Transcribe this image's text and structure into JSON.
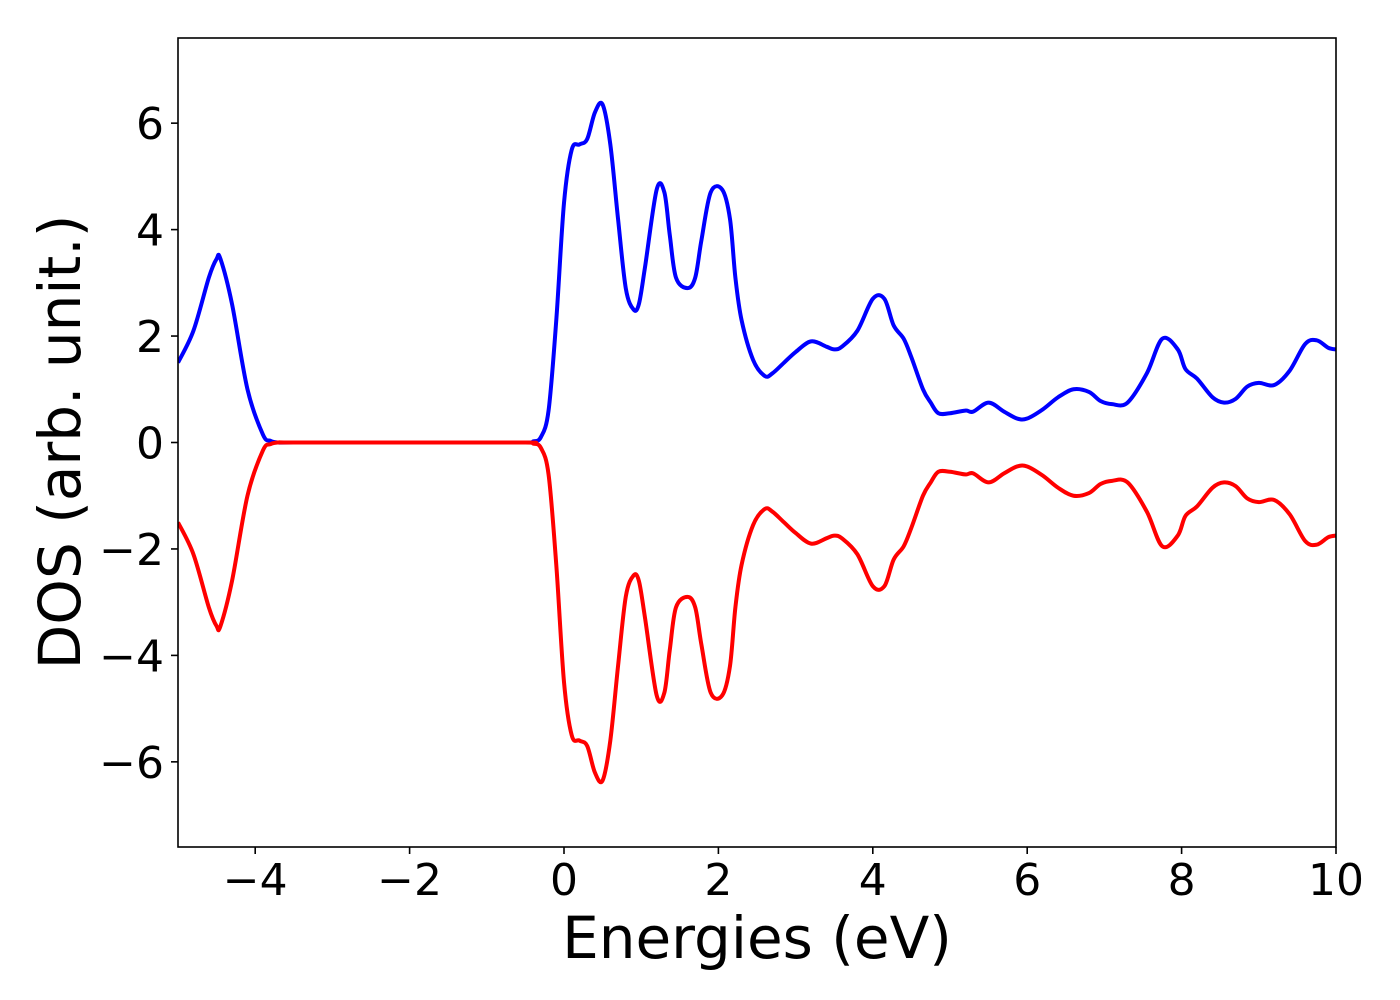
{
  "chart_data": {
    "type": "line",
    "title": "",
    "xlabel": "Energies (eV)",
    "ylabel": "DOS (arb. unit.)",
    "xlim": [
      -5,
      10
    ],
    "ylim": [
      -7.6,
      7.6
    ],
    "grid": false,
    "legend": "none",
    "xticks": [
      -4,
      -2,
      0,
      2,
      4,
      6,
      8,
      10
    ],
    "yticks": [
      -6,
      -4,
      -2,
      0,
      2,
      4,
      6
    ],
    "xtick_labels": [
      "−4",
      "−2",
      "0",
      "2",
      "4",
      "6",
      "8",
      "10"
    ],
    "ytick_labels": [
      "−6",
      "−4",
      "−2",
      "0",
      "2",
      "4",
      "6"
    ],
    "x": [
      -5.0,
      -4.8,
      -4.6,
      -4.5,
      -4.45,
      -4.3,
      -4.1,
      -3.9,
      -3.8,
      -3.7,
      -3.5,
      -2.0,
      -0.5,
      -0.4,
      -0.3,
      -0.2,
      -0.1,
      0.0,
      0.1,
      0.2,
      0.3,
      0.4,
      0.5,
      0.6,
      0.7,
      0.8,
      0.9,
      0.97,
      1.05,
      1.2,
      1.3,
      1.37,
      1.45,
      1.6,
      1.7,
      1.78,
      1.9,
      2.05,
      2.15,
      2.22,
      2.3,
      2.45,
      2.6,
      2.7,
      2.85,
      3.0,
      3.2,
      3.4,
      3.5,
      3.6,
      3.8,
      4.0,
      4.15,
      4.27,
      4.4,
      4.5,
      4.65,
      4.75,
      4.85,
      5.0,
      5.2,
      5.3,
      5.5,
      5.7,
      5.87,
      6.0,
      6.2,
      6.4,
      6.6,
      6.8,
      6.95,
      7.1,
      7.3,
      7.55,
      7.75,
      7.95,
      8.05,
      8.2,
      8.4,
      8.55,
      8.7,
      8.85,
      9.0,
      9.2,
      9.4,
      9.6,
      9.75,
      9.9,
      10.0
    ],
    "series": [
      {
        "color": "#0000ff",
        "values": [
          1.5,
          2.1,
          3.1,
          3.45,
          3.45,
          2.6,
          1.0,
          0.15,
          0.03,
          0.0,
          0.0,
          0.0,
          0.0,
          0.02,
          0.1,
          0.6,
          2.3,
          4.5,
          5.5,
          5.6,
          5.7,
          6.2,
          6.35,
          5.6,
          4.2,
          2.9,
          2.5,
          2.6,
          3.3,
          4.75,
          4.7,
          3.9,
          3.1,
          2.9,
          3.1,
          3.8,
          4.7,
          4.75,
          4.2,
          3.1,
          2.3,
          1.55,
          1.25,
          1.3,
          1.5,
          1.7,
          1.9,
          1.8,
          1.75,
          1.8,
          2.1,
          2.7,
          2.7,
          2.2,
          1.95,
          1.6,
          1.0,
          0.75,
          0.55,
          0.55,
          0.6,
          0.58,
          0.75,
          0.58,
          0.45,
          0.45,
          0.62,
          0.85,
          1.0,
          0.95,
          0.78,
          0.72,
          0.75,
          1.3,
          1.95,
          1.75,
          1.38,
          1.2,
          0.85,
          0.75,
          0.82,
          1.05,
          1.12,
          1.08,
          1.35,
          1.85,
          1.92,
          1.78,
          1.75
        ]
      },
      {
        "color": "#ff0000",
        "values": [
          -1.5,
          -2.1,
          -3.1,
          -3.45,
          -3.45,
          -2.6,
          -1.0,
          -0.15,
          -0.03,
          0.0,
          0.0,
          0.0,
          0.0,
          -0.02,
          -0.1,
          -0.6,
          -2.3,
          -4.5,
          -5.5,
          -5.6,
          -5.7,
          -6.2,
          -6.35,
          -5.6,
          -4.2,
          -2.9,
          -2.5,
          -2.6,
          -3.3,
          -4.75,
          -4.7,
          -3.9,
          -3.1,
          -2.9,
          -3.1,
          -3.8,
          -4.7,
          -4.75,
          -4.2,
          -3.1,
          -2.3,
          -1.55,
          -1.25,
          -1.3,
          -1.5,
          -1.7,
          -1.9,
          -1.8,
          -1.75,
          -1.8,
          -2.1,
          -2.7,
          -2.7,
          -2.2,
          -1.95,
          -1.6,
          -1.0,
          -0.75,
          -0.55,
          -0.55,
          -0.6,
          -0.58,
          -0.75,
          -0.58,
          -0.45,
          -0.45,
          -0.62,
          -0.85,
          -1.0,
          -0.95,
          -0.78,
          -0.72,
          -0.75,
          -1.3,
          -1.95,
          -1.75,
          -1.38,
          -1.2,
          -0.85,
          -0.75,
          -0.82,
          -1.05,
          -1.12,
          -1.08,
          -1.35,
          -1.85,
          -1.92,
          -1.78,
          -1.75
        ]
      }
    ]
  }
}
